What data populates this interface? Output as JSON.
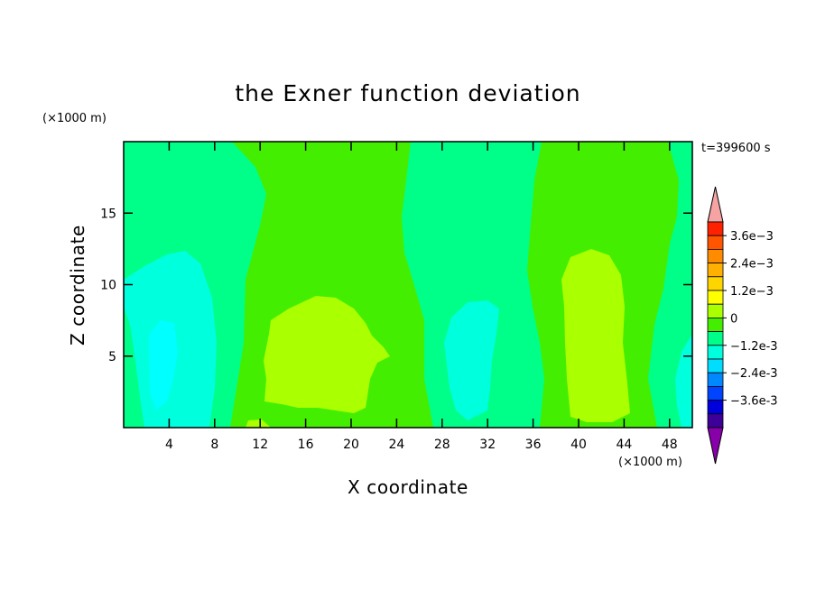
{
  "chart_data": {
    "type": "heatmap",
    "title": "the Exner function deviation",
    "xlabel": "X coordinate",
    "ylabel": "Z coordinate",
    "x_unit": "(×1000 m)",
    "y_unit": "(×1000 m)",
    "time_label": "t=399600 s",
    "xlim": [
      0,
      50
    ],
    "ylim": [
      0,
      20
    ],
    "x_ticks": [
      4,
      8,
      12,
      16,
      20,
      24,
      28,
      32,
      36,
      40,
      44,
      48
    ],
    "y_ticks": [
      5,
      10,
      15
    ],
    "colorbar": {
      "labels": [
        "3.6e-3",
        "2.4e-3",
        "1.2e-3",
        "0",
        "-1.2e-3",
        "-2.4e-3",
        "-3.6e-3"
      ],
      "label_values": [
        0.0036,
        0.0024,
        0.0012,
        0,
        -0.0012,
        -0.0024,
        -0.0036
      ],
      "levels_top_to_bottom": [
        0.0042,
        0.0036,
        0.003,
        0.0024,
        0.0018,
        0.0012,
        0.0006,
        0,
        -0.0006,
        -0.0012,
        -0.0018,
        -0.0024,
        -0.003,
        -0.0036,
        -0.0042
      ],
      "colors_top_to_bottom": [
        "#f5a3a3",
        "#ff2200",
        "#ff5500",
        "#ff8c00",
        "#ffb000",
        "#ffd500",
        "#ffff00",
        "#aaff00",
        "#44ee00",
        "#00ff88",
        "#00ffdd",
        "#00ddff",
        "#0088ff",
        "#0044ff",
        "#0000dd",
        "#3d0099",
        "#8800aa"
      ]
    },
    "fields": {
      "background_color": "#00ff88",
      "regions": [
        {
          "level": "0 to 6e-4",
          "color": "#44ee00",
          "band": "x 10.5–26.5 km"
        },
        {
          "level": "0 to 6e-4",
          "color": "#44ee00",
          "band": "x 36–49 km"
        },
        {
          "level": "6e-4 to 1.2e-3",
          "color": "#aaff00",
          "band": "x 13–24 km, z 0–9 km"
        },
        {
          "level": "6e-4 to 1.2e-3",
          "color": "#aaff00",
          "band": "x 39–45 km, z 0–12 km"
        },
        {
          "level": "-1.2e-3 to -6e-4",
          "color": "#00ffdd",
          "band": "x 2–8 km, z 0–12 km"
        },
        {
          "level": "-1.2e-3 to -6e-4",
          "color": "#00ffdd",
          "band": "x 29–34 km, z 0–8.5 km"
        },
        {
          "level": "-1.8e-3 to -1.2e-3",
          "color": "#00ffff",
          "band": "x 3–5 km, z 0–7 km"
        }
      ]
    }
  }
}
